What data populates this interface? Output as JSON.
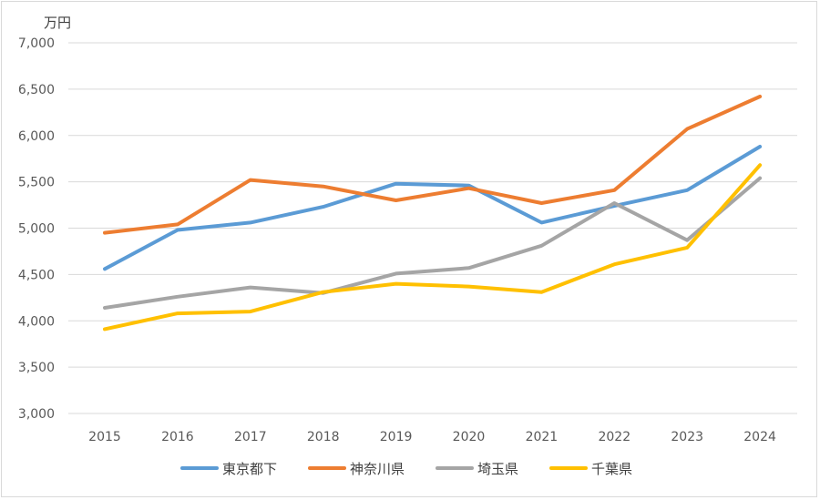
{
  "chart_data": {
    "type": "line",
    "unit_label": "万円",
    "x": [
      "2015",
      "2016",
      "2017",
      "2018",
      "2019",
      "2020",
      "2021",
      "2022",
      "2023",
      "2024"
    ],
    "ylim": [
      3000,
      7000
    ],
    "yticks": [
      3000,
      3500,
      4000,
      4500,
      5000,
      5500,
      6000,
      6500,
      7000
    ],
    "ytick_labels": [
      "3,000",
      "3,500",
      "4,000",
      "4,500",
      "5,000",
      "5,500",
      "6,000",
      "6,500",
      "7,000"
    ],
    "grid": true,
    "legend_position": "bottom",
    "series": [
      {
        "name": "東京都下",
        "color": "#5b9bd5",
        "values": [
          4560,
          4980,
          5060,
          5230,
          5480,
          5460,
          5060,
          5240,
          5410,
          5880
        ]
      },
      {
        "name": "神奈川県",
        "color": "#ed7d31",
        "values": [
          4950,
          5040,
          5520,
          5450,
          5300,
          5430,
          5270,
          5410,
          6070,
          6420
        ]
      },
      {
        "name": "埼玉県",
        "color": "#a5a5a5",
        "values": [
          4140,
          4260,
          4360,
          4300,
          4510,
          4570,
          4810,
          5270,
          4870,
          5540
        ]
      },
      {
        "name": "千葉県",
        "color": "#ffc000",
        "values": [
          3910,
          4080,
          4100,
          4310,
          4400,
          4370,
          4310,
          4610,
          4790,
          5680
        ]
      }
    ]
  }
}
